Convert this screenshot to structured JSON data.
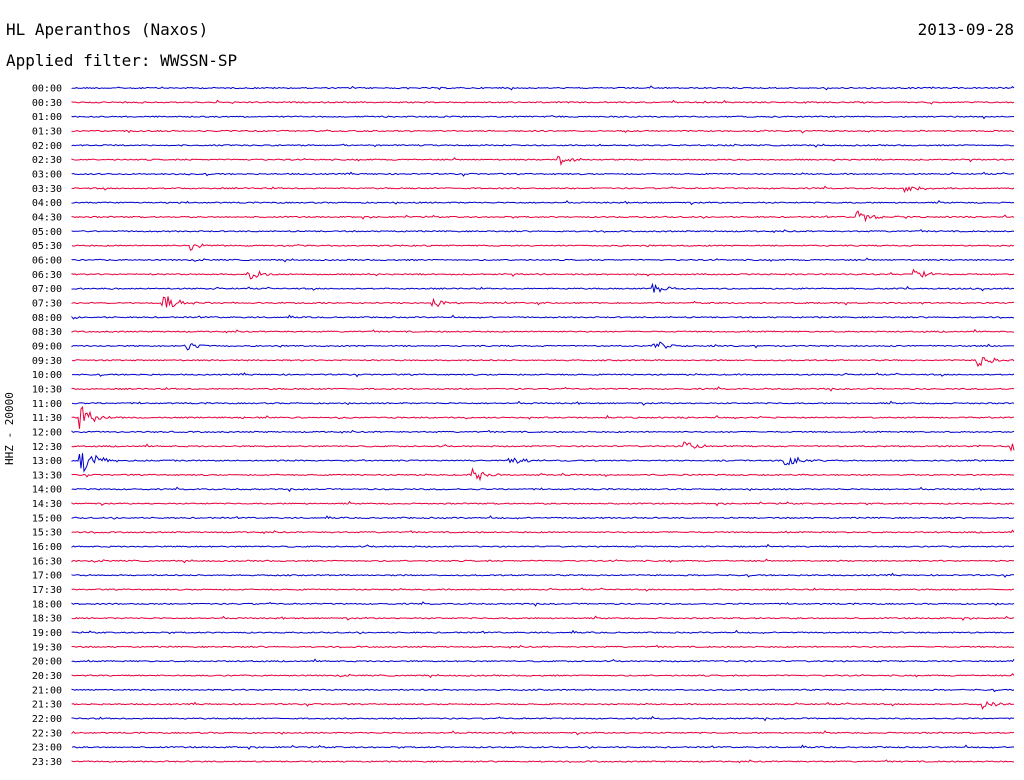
{
  "header": {
    "station": "HL Aperanthos (Naxos)",
    "date": "2013-09-28",
    "filter": "Applied filter: WWSSN-SP"
  },
  "channel_label": "HHZ - 20000",
  "colors": {
    "blue": "#0000cc",
    "red": "#e8003c"
  },
  "chart_data": {
    "type": "line",
    "title": "HL Aperanthos (Naxos)",
    "subtitle": "Applied filter: WWSSN-SP",
    "ylabel": "HHZ - 20000",
    "xlabel": "",
    "trace_duration_minutes": 30,
    "row_labels": [
      "00:00",
      "00:30",
      "01:00",
      "01:30",
      "02:00",
      "02:30",
      "03:00",
      "03:30",
      "04:00",
      "04:30",
      "05:00",
      "05:30",
      "06:00",
      "06:30",
      "07:00",
      "07:30",
      "08:00",
      "08:30",
      "09:00",
      "09:30",
      "10:00",
      "10:30",
      "11:00",
      "11:30",
      "12:00",
      "12:30",
      "13:00",
      "13:30",
      "14:00",
      "14:30",
      "15:00",
      "15:30",
      "16:00",
      "16:30",
      "17:00",
      "17:30",
      "18:00",
      "18:30",
      "19:00",
      "19:30",
      "20:00",
      "20:30",
      "21:00",
      "21:30",
      "22:00",
      "22:30",
      "23:00",
      "23:30"
    ],
    "events": [
      {
        "row": 5,
        "minute": 15.5,
        "amplitude": 0.5
      },
      {
        "row": 7,
        "minute": 26.5,
        "amplitude": 0.3
      },
      {
        "row": 9,
        "minute": 25.0,
        "amplitude": 0.5
      },
      {
        "row": 11,
        "minute": 3.8,
        "amplitude": 0.4
      },
      {
        "row": 13,
        "minute": 5.6,
        "amplitude": 0.6
      },
      {
        "row": 13,
        "minute": 26.8,
        "amplitude": 0.5
      },
      {
        "row": 14,
        "minute": 18.5,
        "amplitude": 0.5
      },
      {
        "row": 15,
        "minute": 2.9,
        "amplitude": 0.8
      },
      {
        "row": 15,
        "minute": 11.5,
        "amplitude": 0.5
      },
      {
        "row": 18,
        "minute": 3.6,
        "amplitude": 0.4
      },
      {
        "row": 18,
        "minute": 18.5,
        "amplitude": 0.5
      },
      {
        "row": 19,
        "minute": 28.8,
        "amplitude": 0.6
      },
      {
        "row": 23,
        "minute": 0.3,
        "amplitude": 1.0
      },
      {
        "row": 25,
        "minute": 19.5,
        "amplitude": 0.5
      },
      {
        "row": 25,
        "minute": 29.9,
        "amplitude": 0.6
      },
      {
        "row": 26,
        "minute": 0.3,
        "amplitude": 1.3
      },
      {
        "row": 26,
        "minute": 13.9,
        "amplitude": 0.4
      },
      {
        "row": 26,
        "minute": 22.7,
        "amplitude": 0.8
      },
      {
        "row": 27,
        "minute": 12.8,
        "amplitude": 0.6
      },
      {
        "row": 43,
        "minute": 29.0,
        "amplitude": 0.4
      }
    ]
  }
}
